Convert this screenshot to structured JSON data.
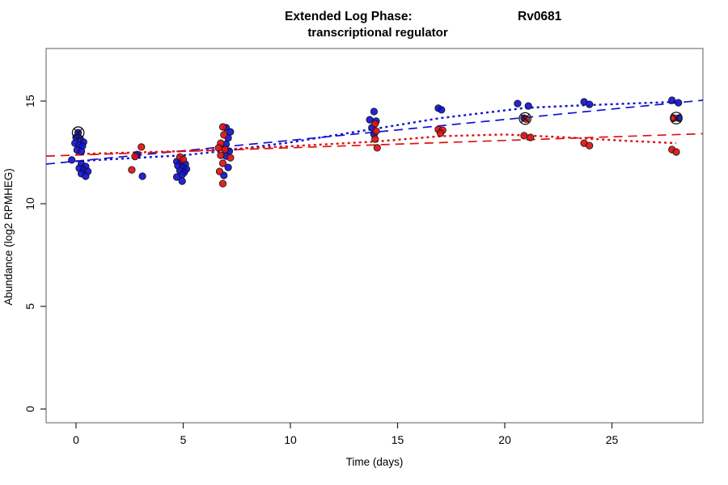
{
  "chart_data": {
    "type": "scatter",
    "title_left": "Extended Log Phase:",
    "title_right": "Rv0681",
    "subtitle": "transcriptional regulator",
    "xlabel": "Time  (days)",
    "ylabel": "Abundance  (log2 RPMHEG)",
    "colors": {
      "blue": "#1111d6",
      "red": "#dd1111",
      "marker": "#111111",
      "box": "#777777",
      "axis": "#222222"
    },
    "axes": {
      "xlim": [
        -1.396,
        29.245
      ],
      "ylim": [
        -0.669,
        17.56
      ],
      "xticks": [
        0,
        5,
        10,
        15,
        20,
        25
      ],
      "yticks": [
        0,
        5,
        10,
        15
      ],
      "grid": false
    },
    "series": [
      {
        "name": "blue-points",
        "color": "#1111d6",
        "points": [
          [
            0.1,
            13.46
          ],
          [
            0.0,
            13.23
          ],
          [
            0.2,
            13.15
          ],
          [
            0.35,
            13.0
          ],
          [
            -0.05,
            12.95
          ],
          [
            0.15,
            12.85
          ],
          [
            0.3,
            12.8
          ],
          [
            0.05,
            12.62
          ],
          [
            0.25,
            12.55
          ],
          [
            -0.2,
            12.13
          ],
          [
            0.25,
            11.93
          ],
          [
            0.45,
            11.81
          ],
          [
            0.15,
            11.73
          ],
          [
            0.35,
            11.65
          ],
          [
            0.55,
            11.57
          ],
          [
            0.25,
            11.46
          ],
          [
            0.45,
            11.34
          ],
          [
            2.85,
            12.4
          ],
          [
            3.1,
            11.34
          ],
          [
            4.7,
            12.05
          ],
          [
            4.9,
            12.01
          ],
          [
            5.1,
            11.93
          ],
          [
            4.75,
            11.85
          ],
          [
            5.0,
            11.77
          ],
          [
            5.15,
            11.69
          ],
          [
            4.85,
            11.61
          ],
          [
            5.05,
            11.53
          ],
          [
            4.95,
            11.42
          ],
          [
            4.7,
            11.3
          ],
          [
            4.95,
            11.1
          ],
          [
            7.0,
            13.7
          ],
          [
            7.2,
            13.5
          ],
          [
            7.1,
            13.2
          ],
          [
            7.0,
            12.9
          ],
          [
            7.15,
            12.56
          ],
          [
            7.0,
            12.32
          ],
          [
            7.1,
            11.77
          ],
          [
            6.9,
            11.38
          ],
          [
            13.9,
            14.49
          ],
          [
            13.7,
            14.09
          ],
          [
            14.0,
            14.02
          ],
          [
            13.8,
            13.7
          ],
          [
            13.9,
            13.38
          ],
          [
            16.9,
            14.65
          ],
          [
            17.05,
            14.57
          ],
          [
            20.6,
            14.88
          ],
          [
            21.1,
            14.76
          ],
          [
            20.9,
            14.17
          ],
          [
            23.7,
            14.96
          ],
          [
            23.95,
            14.84
          ],
          [
            27.8,
            15.04
          ],
          [
            28.1,
            14.92
          ],
          [
            28.12,
            14.17
          ]
        ]
      },
      {
        "name": "red-points",
        "color": "#dd1111",
        "points": [
          [
            3.05,
            12.76
          ],
          [
            2.75,
            12.3
          ],
          [
            2.6,
            11.65
          ],
          [
            4.85,
            12.28
          ],
          [
            5.0,
            12.16
          ],
          [
            6.85,
            13.74
          ],
          [
            6.9,
            13.35
          ],
          [
            6.75,
            12.95
          ],
          [
            6.65,
            12.72
          ],
          [
            6.95,
            12.64
          ],
          [
            6.75,
            12.36
          ],
          [
            7.2,
            12.24
          ],
          [
            6.85,
            11.97
          ],
          [
            6.7,
            11.57
          ],
          [
            6.85,
            10.98
          ],
          [
            13.95,
            13.9
          ],
          [
            14.0,
            13.54
          ],
          [
            13.95,
            13.15
          ],
          [
            14.05,
            12.72
          ],
          [
            16.9,
            13.62
          ],
          [
            17.1,
            13.58
          ],
          [
            17.0,
            13.43
          ],
          [
            20.9,
            13.31
          ],
          [
            21.2,
            13.23
          ],
          [
            21.0,
            14.12
          ],
          [
            23.7,
            12.95
          ],
          [
            23.95,
            12.83
          ],
          [
            27.9,
            14.17
          ],
          [
            27.8,
            12.64
          ],
          [
            28.0,
            12.52
          ]
        ]
      }
    ],
    "circled_markers": [
      {
        "x": 0.1,
        "y": 13.46
      },
      {
        "x": 20.95,
        "y": 14.15
      },
      {
        "x": 28.0,
        "y": 14.17
      }
    ],
    "trend_lines": [
      {
        "name": "blue-dashed-linear-fit",
        "color": "#1111d6",
        "style": "dashed",
        "points": [
          [
            -1.396,
            11.93
          ],
          [
            29.245,
            15.04
          ]
        ]
      },
      {
        "name": "red-dashed-linear-fit",
        "color": "#dd1111",
        "style": "dashed",
        "points": [
          [
            -1.396,
            12.32
          ],
          [
            29.245,
            13.41
          ]
        ]
      },
      {
        "name": "blue-dotted-loess-fit",
        "color": "#1111d6",
        "style": "dotted",
        "points": [
          [
            0,
            12.07
          ],
          [
            5,
            12.36
          ],
          [
            7,
            12.58
          ],
          [
            10,
            12.99
          ],
          [
            14,
            13.66
          ],
          [
            17,
            14.17
          ],
          [
            21,
            14.67
          ],
          [
            23.8,
            14.8
          ],
          [
            28,
            14.96
          ]
        ]
      },
      {
        "name": "red-dotted-loess-fit",
        "color": "#dd1111",
        "style": "dotted",
        "points": [
          [
            0,
            12.42
          ],
          [
            5,
            12.56
          ],
          [
            7,
            12.66
          ],
          [
            10,
            12.8
          ],
          [
            14,
            13.03
          ],
          [
            17,
            13.29
          ],
          [
            20,
            13.37
          ],
          [
            22.9,
            13.23
          ],
          [
            25.5,
            13.07
          ],
          [
            28,
            12.95
          ]
        ]
      }
    ]
  }
}
